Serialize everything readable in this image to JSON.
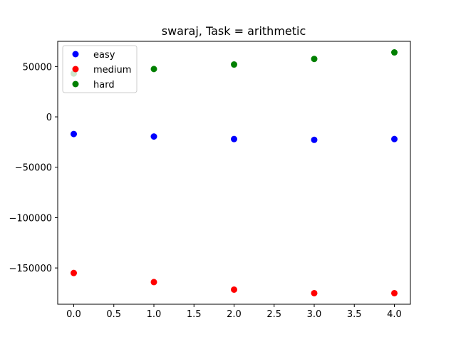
{
  "chart_data": {
    "type": "scatter",
    "title": "swaraj, Task = arithmetic",
    "xlabel": "",
    "ylabel": "",
    "x": [
      0,
      1,
      2,
      3,
      4
    ],
    "series": [
      {
        "name": "easy",
        "color": "#0000ff",
        "values": [
          -17000,
          -19500,
          -22000,
          -22800,
          -22000
        ]
      },
      {
        "name": "medium",
        "color": "#ff0000",
        "values": [
          -155000,
          -164000,
          -171500,
          -175000,
          -175000
        ]
      },
      {
        "name": "hard",
        "color": "#008000",
        "values": [
          43000,
          47500,
          52000,
          57500,
          64000
        ]
      }
    ],
    "xlim": [
      -0.2,
      4.2
    ],
    "ylim": [
      -186000,
      75000
    ],
    "xticks": [
      0.0,
      0.5,
      1.0,
      1.5,
      2.0,
      2.5,
      3.0,
      3.5,
      4.0
    ],
    "xtick_labels": [
      "0.0",
      "0.5",
      "1.0",
      "1.5",
      "2.0",
      "2.5",
      "3.0",
      "3.5",
      "4.0"
    ],
    "yticks": [
      50000,
      0,
      -50000,
      -100000,
      -150000
    ],
    "ytick_labels": [
      "50000",
      "0",
      "−50000",
      "−100000",
      "−150000"
    ],
    "grid": false,
    "legend_position": "top-left"
  }
}
